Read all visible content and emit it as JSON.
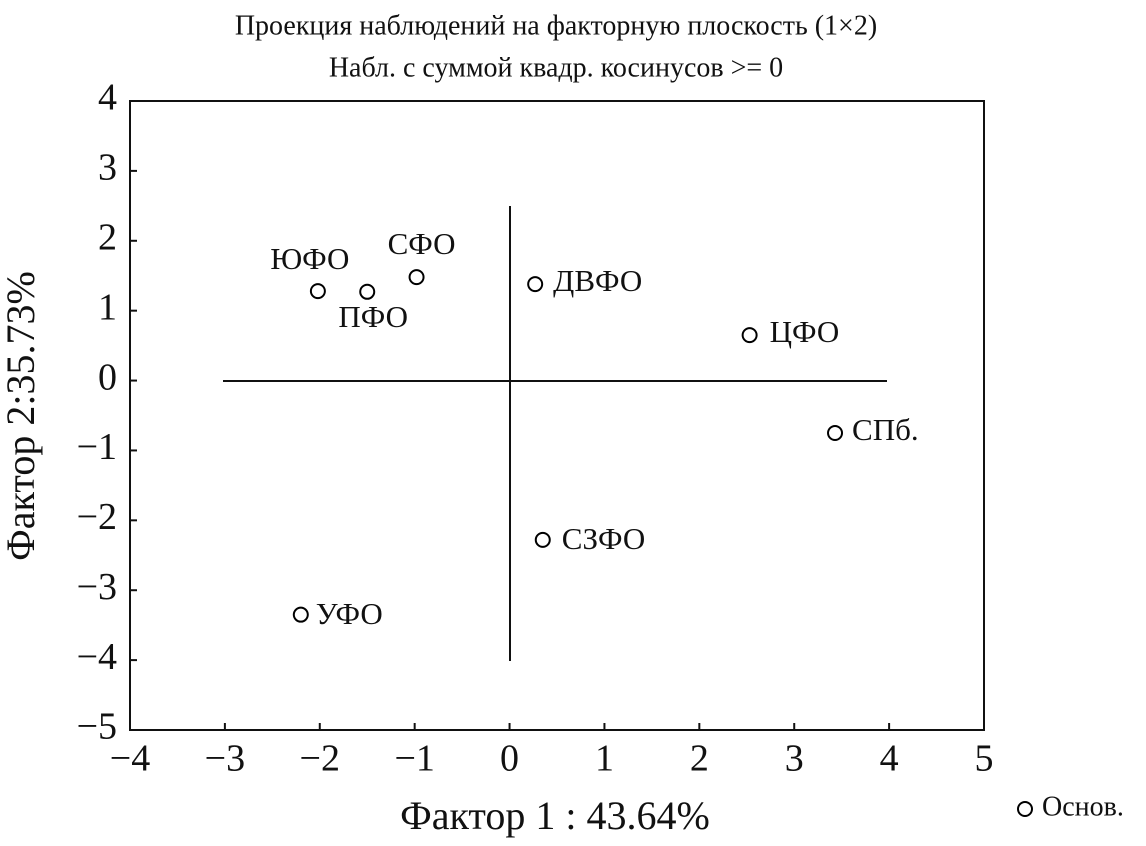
{
  "chart_data": {
    "type": "scatter",
    "title": "Проекция наблюдений на факторную плоскость (1×2)",
    "subtitle": "Набл. с суммой квадр. косинусов >= 0",
    "x_label": "Фактор 1 : 43.64%",
    "y_label": "Фактор 2:35.73%",
    "xlim": [
      -4,
      5
    ],
    "ylim": [
      -5,
      4
    ],
    "xticks": [
      {
        "value": -4,
        "label": "−4"
      },
      {
        "value": -3,
        "label": "−3"
      },
      {
        "value": -2,
        "label": "−2"
      },
      {
        "value": -1,
        "label": "−1"
      },
      0,
      1,
      2,
      3,
      4,
      5
    ],
    "yticks": [
      {
        "value": -5,
        "label": "−5"
      },
      {
        "value": -4,
        "label": "−4"
      },
      {
        "value": -3,
        "label": "−3"
      },
      {
        "value": -2,
        "label": "−2"
      },
      {
        "value": -1,
        "label": "−1"
      },
      0,
      1,
      2,
      3,
      4
    ],
    "series": [
      {
        "name": "Основ.",
        "color": "#000000",
        "labels": [
          "ЮФО",
          "ПФО",
          "СФО",
          "ДВФО",
          "ЦФО",
          "СПб.",
          "СЗФО",
          "УФО"
        ],
        "x": [
          -2.02,
          -1.5,
          -0.98,
          0.27,
          2.53,
          3.43,
          0.35,
          -2.2
        ],
        "values": [
          1.28,
          1.27,
          1.48,
          1.38,
          0.65,
          -0.75,
          -2.28,
          -3.35
        ]
      }
    ]
  }
}
